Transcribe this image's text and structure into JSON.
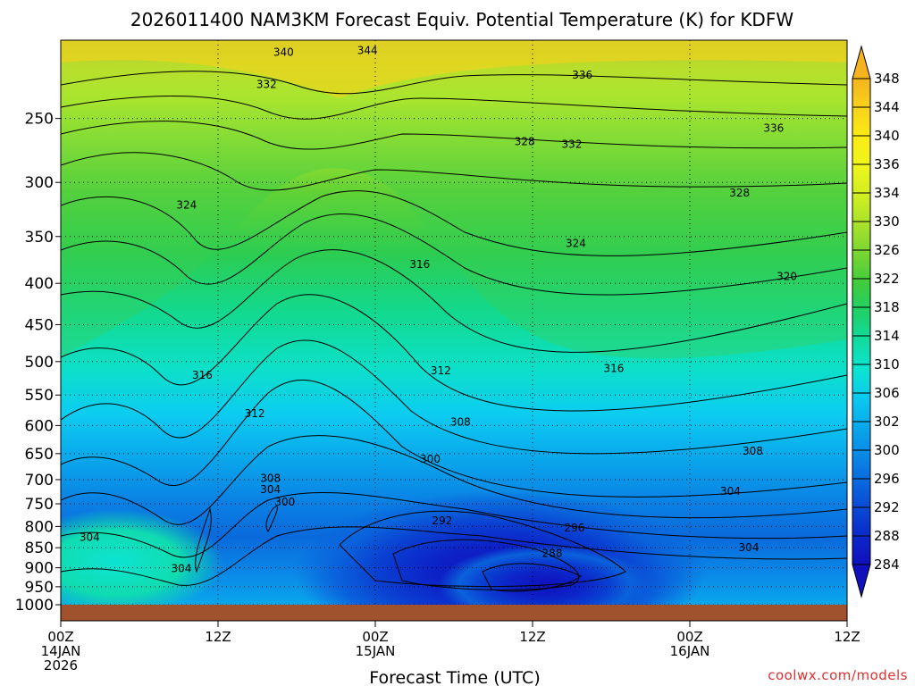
{
  "title": "2026011400 NAM3KM Forecast Equiv. Potential Temperature (K) for KDFW",
  "credit": "coolwx.com/models",
  "chart_data": {
    "type": "heatmap",
    "title": "2026011400 NAM3KM Forecast Equiv. Potential Temperature (K) for KDFW",
    "xlabel": "Forecast Time (UTC)",
    "ylabel": "",
    "x_ticks": [
      {
        "hour": 0,
        "lines": [
          "00Z",
          "14JAN",
          "2026"
        ]
      },
      {
        "hour": 12,
        "lines": [
          "12Z"
        ]
      },
      {
        "hour": 24,
        "lines": [
          "00Z",
          "15JAN"
        ]
      },
      {
        "hour": 36,
        "lines": [
          "12Z"
        ]
      },
      {
        "hour": 48,
        "lines": [
          "00Z",
          "16JAN"
        ]
      },
      {
        "hour": 60,
        "lines": [
          "12Z"
        ]
      }
    ],
    "xlim": [
      0,
      60
    ],
    "y_ticks": [
      250,
      300,
      350,
      400,
      450,
      500,
      550,
      600,
      650,
      700,
      750,
      800,
      850,
      900,
      950,
      1000
    ],
    "ylim": [
      200,
      1000
    ],
    "y_scale": "log-pressure",
    "grid": true,
    "colorbar": {
      "levels": [
        348,
        344,
        340,
        336,
        334,
        330,
        326,
        322,
        318,
        314,
        310,
        306,
        302,
        300,
        296,
        292,
        288,
        284
      ],
      "colors": [
        "#f5b41e",
        "#f8d21a",
        "#fbec14",
        "#eef61c",
        "#d0ee22",
        "#a8e22a",
        "#78d632",
        "#40cc3c",
        "#20d068",
        "#10dca0",
        "#0ce4d2",
        "#0ac8f0",
        "#0aa6ec",
        "#0a86e6",
        "#0a62dc",
        "#0a40d2",
        "#0c24c8",
        "#1010bc"
      ]
    },
    "contour_labels": [
      {
        "text": "340",
        "hour": 17.0,
        "p": 207
      },
      {
        "text": "344",
        "hour": 23.4,
        "p": 206
      },
      {
        "text": "332",
        "hour": 15.7,
        "p": 227
      },
      {
        "text": "336",
        "hour": 39.8,
        "p": 221
      },
      {
        "text": "328",
        "hour": 35.4,
        "p": 267
      },
      {
        "text": "332",
        "hour": 39.0,
        "p": 269
      },
      {
        "text": "336",
        "hour": 54.4,
        "p": 257
      },
      {
        "text": "324",
        "hour": 9.6,
        "p": 320
      },
      {
        "text": "328",
        "hour": 51.8,
        "p": 309
      },
      {
        "text": "324",
        "hour": 39.3,
        "p": 357
      },
      {
        "text": "316",
        "hour": 27.4,
        "p": 379
      },
      {
        "text": "320",
        "hour": 55.4,
        "p": 392
      },
      {
        "text": "312",
        "hour": 29.0,
        "p": 513
      },
      {
        "text": "316",
        "hour": 10.8,
        "p": 520
      },
      {
        "text": "316",
        "hour": 42.2,
        "p": 510
      },
      {
        "text": "312",
        "hour": 14.8,
        "p": 580
      },
      {
        "text": "308",
        "hour": 30.5,
        "p": 594
      },
      {
        "text": "308",
        "hour": 52.8,
        "p": 645
      },
      {
        "text": "300",
        "hour": 28.2,
        "p": 660
      },
      {
        "text": "308",
        "hour": 16.0,
        "p": 697
      },
      {
        "text": "304",
        "hour": 16.0,
        "p": 720
      },
      {
        "text": "304",
        "hour": 51.1,
        "p": 724
      },
      {
        "text": "300",
        "hour": 17.1,
        "p": 746
      },
      {
        "text": "292",
        "hour": 29.1,
        "p": 787
      },
      {
        "text": "296",
        "hour": 39.2,
        "p": 803
      },
      {
        "text": "304",
        "hour": 2.2,
        "p": 825
      },
      {
        "text": "288",
        "hour": 37.5,
        "p": 864
      },
      {
        "text": "304",
        "hour": 52.5,
        "p": 850
      },
      {
        "text": "304",
        "hour": 9.2,
        "p": 902
      }
    ]
  }
}
